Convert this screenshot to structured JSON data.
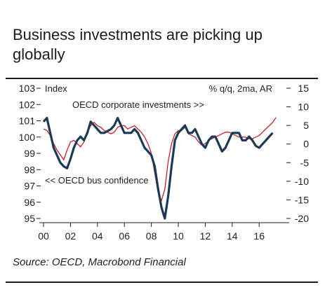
{
  "title": "Business investments are picking up globally",
  "source": "Source: OECD, Macrobond Financial",
  "chart_data": {
    "type": "line",
    "title": "Business investments are picking up globally",
    "left_axis_label": "Index",
    "right_axis_label": "% q/q, 2ma, AR",
    "left_ylim": [
      95,
      103
    ],
    "right_ylim": [
      -20,
      15
    ],
    "left_ticks": [
      95,
      96,
      97,
      98,
      99,
      100,
      101,
      102,
      103
    ],
    "right_ticks": [
      -20,
      -15,
      -10,
      -5,
      0,
      5,
      10,
      15
    ],
    "x_ticks": [
      "00",
      "02",
      "04",
      "06",
      "08",
      "10",
      "12",
      "14",
      "16"
    ],
    "xlim": [
      2000,
      2017.5
    ],
    "grid": false,
    "colors": {
      "investments": "#1b3a57",
      "confidence": "#c8202a"
    },
    "series": [
      {
        "name": "OECD corporate investments >>",
        "axis": "right",
        "label": "OECD corporate investments >>",
        "x": [
          2000.0,
          2000.25,
          2000.5,
          2000.75,
          2001.0,
          2001.25,
          2001.5,
          2001.75,
          2002.0,
          2002.25,
          2002.5,
          2002.75,
          2003.0,
          2003.25,
          2003.5,
          2003.75,
          2004.0,
          2004.25,
          2004.5,
          2004.75,
          2005.0,
          2005.25,
          2005.5,
          2005.75,
          2006.0,
          2006.25,
          2006.5,
          2006.75,
          2007.0,
          2007.25,
          2007.5,
          2007.75,
          2008.0,
          2008.25,
          2008.5,
          2008.75,
          2009.0,
          2009.25,
          2009.5,
          2009.75,
          2010.0,
          2010.25,
          2010.5,
          2010.75,
          2011.0,
          2011.25,
          2011.5,
          2011.75,
          2012.0,
          2012.25,
          2012.5,
          2012.75,
          2013.0,
          2013.25,
          2013.5,
          2013.75,
          2014.0,
          2014.25,
          2014.5,
          2014.75,
          2015.0,
          2015.25,
          2015.5,
          2015.75,
          2016.0,
          2016.25,
          2016.5,
          2016.75,
          2017.0
        ],
        "values": [
          6,
          7,
          3,
          -1,
          -3,
          -5,
          -6,
          -6.5,
          -4,
          -1,
          1,
          2,
          1,
          3,
          6,
          5,
          4,
          3,
          3,
          3.5,
          4,
          5,
          7,
          5,
          3,
          3,
          3,
          4,
          3,
          1,
          -1,
          -2,
          -3,
          -6,
          -12,
          -17,
          -20,
          -14,
          -6,
          1,
          3,
          4,
          5,
          3,
          3,
          4,
          2,
          0,
          -1,
          1,
          2,
          2,
          0,
          -2,
          -1,
          1,
          3,
          3,
          3,
          1,
          1,
          2,
          1,
          -0.5,
          -1,
          0,
          1,
          2,
          3
        ]
      },
      {
        "name": "<< OECD bus confidence",
        "axis": "left",
        "label": "<< OECD bus confidence",
        "x": [
          2000.0,
          2000.25,
          2000.5,
          2000.75,
          2001.0,
          2001.25,
          2001.5,
          2001.75,
          2002.0,
          2002.25,
          2002.5,
          2002.75,
          2003.0,
          2003.25,
          2003.5,
          2003.75,
          2004.0,
          2004.25,
          2004.5,
          2004.75,
          2005.0,
          2005.25,
          2005.5,
          2005.75,
          2006.0,
          2006.25,
          2006.5,
          2006.75,
          2007.0,
          2007.25,
          2007.5,
          2007.75,
          2008.0,
          2008.25,
          2008.5,
          2008.75,
          2009.0,
          2009.25,
          2009.5,
          2009.75,
          2010.0,
          2010.25,
          2010.5,
          2010.75,
          2011.0,
          2011.25,
          2011.5,
          2011.75,
          2012.0,
          2012.25,
          2012.5,
          2012.75,
          2013.0,
          2013.25,
          2013.5,
          2013.75,
          2014.0,
          2014.25,
          2014.5,
          2014.75,
          2015.0,
          2015.25,
          2015.5,
          2015.75,
          2016.0,
          2016.25,
          2016.5,
          2016.75,
          2017.0,
          2017.25
        ],
        "values": [
          100.5,
          100.4,
          100.1,
          99.6,
          99.2,
          98.9,
          98.6,
          99.2,
          99.7,
          99.8,
          99.6,
          99.4,
          99.7,
          100.3,
          100.7,
          100.9,
          100.7,
          100.6,
          100.4,
          100.3,
          100.2,
          100.3,
          100.6,
          100.7,
          100.7,
          100.5,
          100.6,
          100.7,
          100.5,
          100.3,
          100.0,
          99.6,
          99.0,
          97.8,
          96.6,
          96.1,
          96.8,
          98.5,
          99.6,
          100.2,
          100.4,
          100.4,
          100.6,
          100.2,
          100.1,
          100.0,
          99.7,
          99.5,
          99.6,
          99.8,
          99.9,
          100.0,
          100.1,
          100.2,
          100.3,
          100.3,
          100.2,
          100.1,
          100.0,
          100.0,
          100.0,
          99.9,
          99.9,
          100.0,
          100.1,
          100.3,
          100.5,
          100.7,
          100.9,
          101.2
        ]
      }
    ]
  }
}
